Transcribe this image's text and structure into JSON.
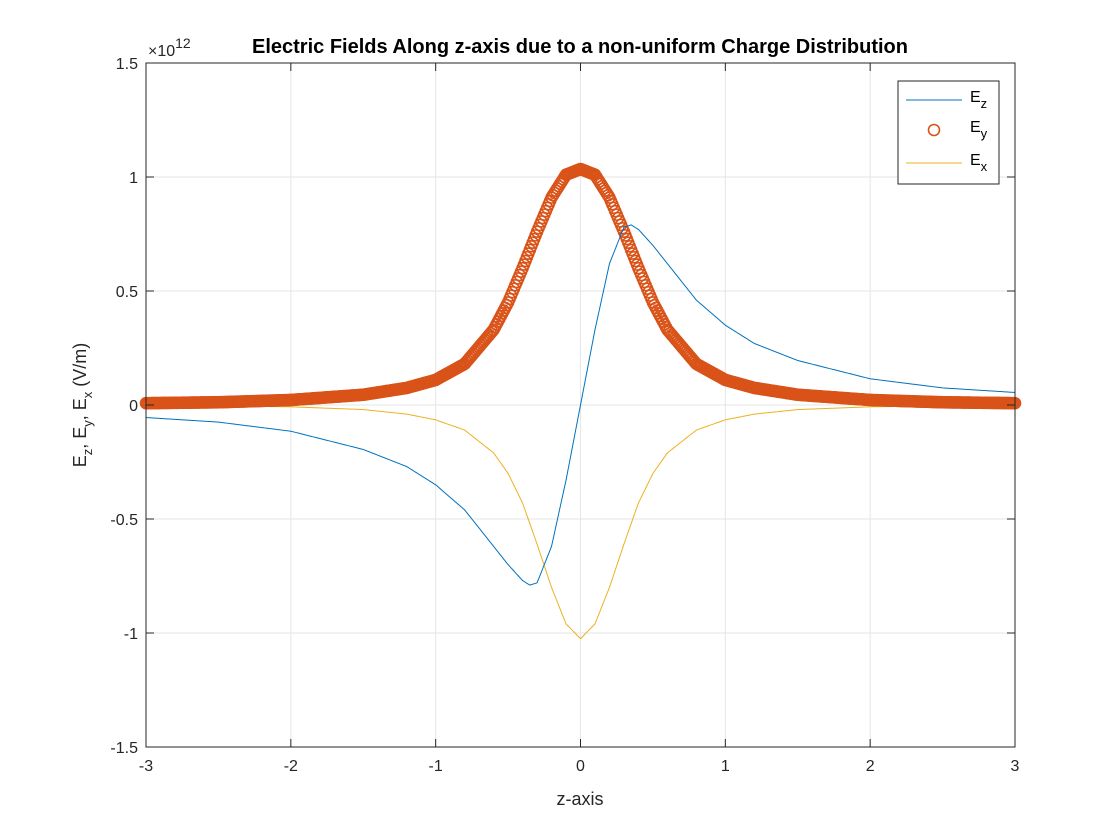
{
  "chart_data": {
    "type": "line",
    "title": "Electric Fields Along z-axis due to a non-uniform Charge Distribution",
    "xlabel": "z-axis",
    "ylabel": {
      "parts": [
        {
          "t": "E",
          "sub": false
        },
        {
          "t": "z",
          "sub": true
        },
        {
          "t": ", E",
          "sub": false
        },
        {
          "t": "y",
          "sub": true
        },
        {
          "t": ", E",
          "sub": false
        },
        {
          "t": "x",
          "sub": true
        },
        {
          "t": " (V/m)",
          "sub": false
        }
      ]
    },
    "xlim": [
      -3,
      3
    ],
    "ylim": [
      -1.5,
      1.5
    ],
    "y_exponent_label": "×10",
    "y_exponent": "12",
    "xticks": [
      -3,
      -2,
      -1,
      0,
      1,
      2,
      3
    ],
    "xtick_labels": [
      "-3",
      "-2",
      "-1",
      "0",
      "1",
      "2",
      "3"
    ],
    "yticks": [
      -1.5,
      -1,
      -0.5,
      0,
      0.5,
      1,
      1.5
    ],
    "ytick_labels": [
      "-1.5",
      "-1",
      "-0.5",
      "0",
      "0.5",
      "1",
      "1.5"
    ],
    "grid": true,
    "legend_position": "top-right",
    "x": [
      -3.0,
      -2.5,
      -2.0,
      -1.5,
      -1.2,
      -1.0,
      -0.8,
      -0.6,
      -0.5,
      -0.4,
      -0.35,
      -0.3,
      -0.2,
      -0.1,
      0.0,
      0.1,
      0.2,
      0.3,
      0.35,
      0.4,
      0.5,
      0.6,
      0.8,
      1.0,
      1.2,
      1.5,
      2.0,
      2.5,
      3.0
    ],
    "series": [
      {
        "name": "E",
        "name_sub": "z",
        "style": "line",
        "color": "#0072BD",
        "values": [
          -0.055,
          -0.075,
          -0.115,
          -0.195,
          -0.27,
          -0.35,
          -0.46,
          -0.62,
          -0.7,
          -0.77,
          -0.79,
          -0.78,
          -0.62,
          -0.33,
          0.0,
          0.33,
          0.62,
          0.78,
          0.79,
          0.77,
          0.7,
          0.62,
          0.46,
          0.35,
          0.27,
          0.195,
          0.115,
          0.075,
          0.055
        ]
      },
      {
        "name": "E",
        "name_sub": "y",
        "style": "circles",
        "color": "#D95319",
        "values": [
          0.008,
          0.012,
          0.022,
          0.045,
          0.075,
          0.11,
          0.18,
          0.33,
          0.45,
          0.6,
          0.68,
          0.76,
          0.91,
          1.01,
          1.035,
          1.01,
          0.91,
          0.76,
          0.68,
          0.6,
          0.45,
          0.33,
          0.18,
          0.11,
          0.075,
          0.045,
          0.022,
          0.012,
          0.008
        ]
      },
      {
        "name": "E",
        "name_sub": "x",
        "style": "line",
        "color": "#EDB120",
        "values": [
          -0.002,
          -0.004,
          -0.008,
          -0.02,
          -0.04,
          -0.065,
          -0.11,
          -0.21,
          -0.3,
          -0.43,
          -0.52,
          -0.61,
          -0.8,
          -0.96,
          -1.025,
          -0.96,
          -0.8,
          -0.61,
          -0.52,
          -0.43,
          -0.3,
          -0.21,
          -0.11,
          -0.065,
          -0.04,
          -0.02,
          -0.008,
          -0.004,
          -0.002
        ]
      }
    ]
  }
}
